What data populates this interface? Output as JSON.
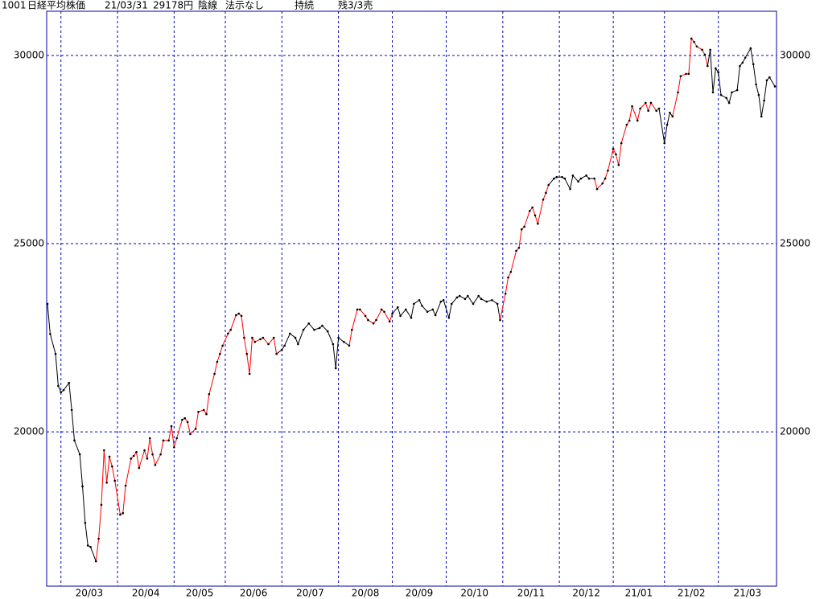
{
  "chart_data": {
    "type": "line",
    "header": [
      "1001",
      "日経平均株価",
      "21/03/31",
      "29178円",
      "陰線",
      "法示なし",
      "持続",
      "残3/3売"
    ],
    "x": [
      0,
      1,
      3,
      4,
      5,
      6,
      8,
      9,
      10,
      12,
      13,
      14,
      15,
      16,
      18,
      19,
      20,
      21,
      22,
      23,
      24,
      25,
      27,
      28,
      29,
      31,
      32,
      33,
      34,
      36,
      37,
      38,
      39,
      40,
      42,
      43,
      45,
      46,
      47,
      48,
      50,
      51,
      52,
      53,
      55,
      56,
      58,
      59,
      60,
      62,
      63,
      64,
      65,
      67,
      68,
      70,
      71,
      72,
      73,
      74,
      75,
      76,
      77,
      79,
      80,
      82,
      84,
      85,
      87,
      88,
      90,
      92,
      93,
      95,
      97,
      99,
      101,
      102,
      104,
      106,
      107,
      108,
      110,
      112,
      113,
      115,
      116,
      118,
      119,
      121,
      122,
      124,
      125,
      127,
      128,
      130,
      131,
      133,
      135,
      136,
      138,
      139,
      141,
      143,
      144,
      146,
      147,
      149,
      150,
      152,
      153,
      155,
      156,
      158,
      160,
      161,
      163,
      165,
      167,
      168,
      170,
      171,
      172,
      174,
      175,
      176,
      177,
      179,
      180,
      181,
      182,
      184,
      185,
      186,
      188,
      189,
      191,
      192,
      194,
      195,
      197,
      198,
      200,
      201,
      203,
      204,
      206,
      207,
      208,
      210,
      211,
      212,
      213,
      215,
      216,
      217,
      219,
      220,
      222,
      223,
      224,
      226,
      227,
      229,
      230,
      231,
      232,
      234,
      235,
      237,
      238,
      239,
      240,
      241,
      243,
      244,
      245,
      246,
      247,
      248,
      249,
      250,
      252,
      253,
      254,
      256,
      257,
      258,
      259,
      261,
      262,
      263,
      264,
      265,
      266,
      267,
      268,
      270
    ],
    "values": [
      23400,
      22600,
      22070,
      21220,
      21050,
      21110,
      21300,
      20580,
      19770,
      19400,
      18550,
      17580,
      16980,
      16940,
      16560,
      17160,
      18060,
      19510,
      18650,
      19340,
      19080,
      18700,
      17800,
      17840,
      18570,
      19290,
      19360,
      19460,
      19040,
      19510,
      19290,
      19830,
      19400,
      19120,
      19400,
      19770,
      19770,
      20150,
      19590,
      19830,
      20320,
      20360,
      20260,
      19940,
      20080,
      20530,
      20580,
      20470,
      21000,
      21540,
      21860,
      22070,
      22290,
      22610,
      22710,
      23100,
      23140,
      23080,
      22500,
      22070,
      21540,
      22500,
      22390,
      22460,
      22500,
      22330,
      22500,
      22070,
      22180,
      22290,
      22610,
      22500,
      22330,
      22710,
      22880,
      22710,
      22760,
      22820,
      22670,
      22330,
      21690,
      22500,
      22390,
      22290,
      22710,
      23250,
      23250,
      23080,
      22970,
      22880,
      22970,
      23250,
      23190,
      22930,
      23140,
      23310,
      23080,
      23250,
      23030,
      23400,
      23500,
      23350,
      23190,
      23250,
      23100,
      23460,
      23500,
      23030,
      23400,
      23570,
      23610,
      23530,
      23610,
      23400,
      23610,
      23530,
      23460,
      23500,
      23400,
      22970,
      23670,
      24100,
      24250,
      24810,
      24890,
      25380,
      25450,
      25870,
      25960,
      25750,
      25530,
      26170,
      26350,
      26560,
      26730,
      26770,
      26770,
      26730,
      26450,
      26810,
      26650,
      26730,
      26810,
      26730,
      26730,
      26450,
      26600,
      26730,
      26940,
      27520,
      27370,
      27090,
      27670,
      28160,
      28270,
      28650,
      28270,
      28590,
      28740,
      28530,
      28740,
      28530,
      28590,
      27670,
      28160,
      28480,
      28380,
      29020,
      29450,
      29510,
      29510,
      30450,
      30360,
      30240,
      30150,
      30020,
      29720,
      30150,
      29020,
      29660,
      29550,
      28950,
      28870,
      28740,
      29020,
      29080,
      29720,
      29810,
      29940,
      30190,
      29770,
      29230,
      28950,
      28380,
      28800,
      29340,
      29420,
      29178
    ],
    "colors": [
      "black",
      "black",
      "black",
      "black",
      "black",
      "black",
      "black",
      "black",
      "black",
      "black",
      "black",
      "black",
      "black",
      "black",
      "black",
      "red",
      "red",
      "red",
      "red",
      "red",
      "red",
      "red",
      "red",
      "red",
      "red",
      "red",
      "red",
      "red",
      "red",
      "red",
      "red",
      "red",
      "red",
      "red",
      "red",
      "red",
      "red",
      "red",
      "red",
      "red",
      "red",
      "red",
      "red",
      "red",
      "red",
      "red",
      "red",
      "red",
      "red",
      "red",
      "red",
      "red",
      "red",
      "red",
      "red",
      "red",
      "red",
      "red",
      "red",
      "red",
      "red",
      "red",
      "red",
      "red",
      "red",
      "red",
      "red",
      "red",
      "black",
      "black",
      "black",
      "black",
      "black",
      "black",
      "black",
      "black",
      "black",
      "black",
      "black",
      "black",
      "black",
      "black",
      "black",
      "black",
      "red",
      "red",
      "red",
      "red",
      "red",
      "red",
      "red",
      "red",
      "red",
      "red",
      "red",
      "black",
      "black",
      "black",
      "black",
      "black",
      "black",
      "black",
      "black",
      "black",
      "black",
      "black",
      "black",
      "black",
      "black",
      "black",
      "black",
      "black",
      "black",
      "black",
      "black",
      "black",
      "black",
      "black",
      "black",
      "black",
      "red",
      "red",
      "red",
      "red",
      "red",
      "red",
      "red",
      "red",
      "red",
      "red",
      "red",
      "red",
      "red",
      "red",
      "black",
      "black",
      "black",
      "black",
      "black",
      "black",
      "black",
      "black",
      "black",
      "black",
      "black",
      "red",
      "red",
      "red",
      "red",
      "red",
      "red",
      "red",
      "red",
      "red",
      "red",
      "red",
      "red",
      "red",
      "red",
      "red",
      "red",
      "red",
      "red",
      "black",
      "black",
      "black",
      "black",
      "red",
      "red",
      "red",
      "red",
      "red",
      "red",
      "red",
      "red",
      "red",
      "red",
      "black",
      "black",
      "black",
      "black",
      "black",
      "black",
      "black",
      "black",
      "black",
      "black",
      "black",
      "black",
      "black",
      "black",
      "black",
      "black",
      "black",
      "black",
      "black",
      "black",
      "black"
    ],
    "categories": [
      "20/03",
      "20/04",
      "20/05",
      "20/06",
      "20/07",
      "20/08",
      "20/09",
      "20/10",
      "20/11",
      "20/12",
      "21/01",
      "21/02",
      "21/03"
    ],
    "xticks": [
      5,
      26,
      47,
      66,
      87,
      108,
      128,
      148,
      169,
      190,
      210,
      229,
      249
    ],
    "xlim": [
      0,
      270
    ],
    "ylim": [
      15900,
      31175
    ],
    "yticks": [
      20000,
      25000,
      30000
    ],
    "grid": true,
    "frame_color": "#0000a0",
    "grid_color": "#0000c0"
  }
}
